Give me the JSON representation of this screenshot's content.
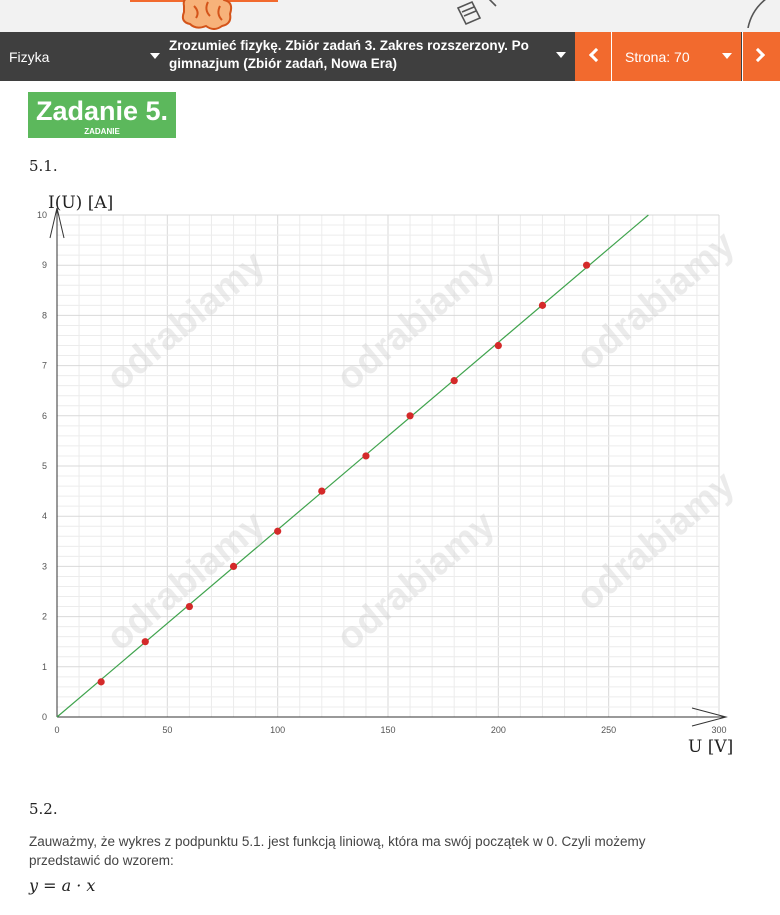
{
  "nav": {
    "subject": "Fizyka",
    "book": "Zrozumieć fizykę. Zbiór zadań 3. Zakres rozszerzony. Po gimnazjum (Zbiór zadań, Nowa Era)",
    "page": "Strona: 70",
    "accent_color": "#f26a2e",
    "bar_color": "#3f3f3f"
  },
  "task": {
    "title": "Zadanie 5.",
    "subtitle": "ZADANIE",
    "badge_color": "#5cb85c"
  },
  "section1": {
    "number": "5.1."
  },
  "section2": {
    "number": "5.2.",
    "text": "Zauważmy, że wykres z podpunktu 5.1. jest funkcją liniową, która ma swój początek w 0. Czyli możemy przedstawić do wzorem:",
    "formula": "y = a · x"
  },
  "watermark_text": "odrabiamy",
  "chart_data": {
    "type": "scatter",
    "ylabel": "I(U)  [A]",
    "xlabel": "U  [V]",
    "xlim": [
      0,
      300
    ],
    "ylim": [
      0,
      10
    ],
    "xticks": [
      0,
      50,
      100,
      150,
      200,
      250,
      300
    ],
    "yticks": [
      0,
      1,
      2,
      3,
      4,
      5,
      6,
      7,
      8,
      9,
      10
    ],
    "grid": true,
    "points": [
      [
        20,
        0.7
      ],
      [
        40,
        1.5
      ],
      [
        60,
        2.2
      ],
      [
        80,
        3.0
      ],
      [
        100,
        3.7
      ],
      [
        120,
        4.5
      ],
      [
        140,
        5.2
      ],
      [
        160,
        6.0
      ],
      [
        180,
        6.7
      ],
      [
        200,
        7.4
      ],
      [
        220,
        8.2
      ],
      [
        240,
        9.0
      ]
    ],
    "fit_line": {
      "from": [
        0,
        0
      ],
      "to": [
        268,
        10
      ]
    },
    "point_color": "#d42a2a",
    "line_color": "#3fa34d"
  }
}
